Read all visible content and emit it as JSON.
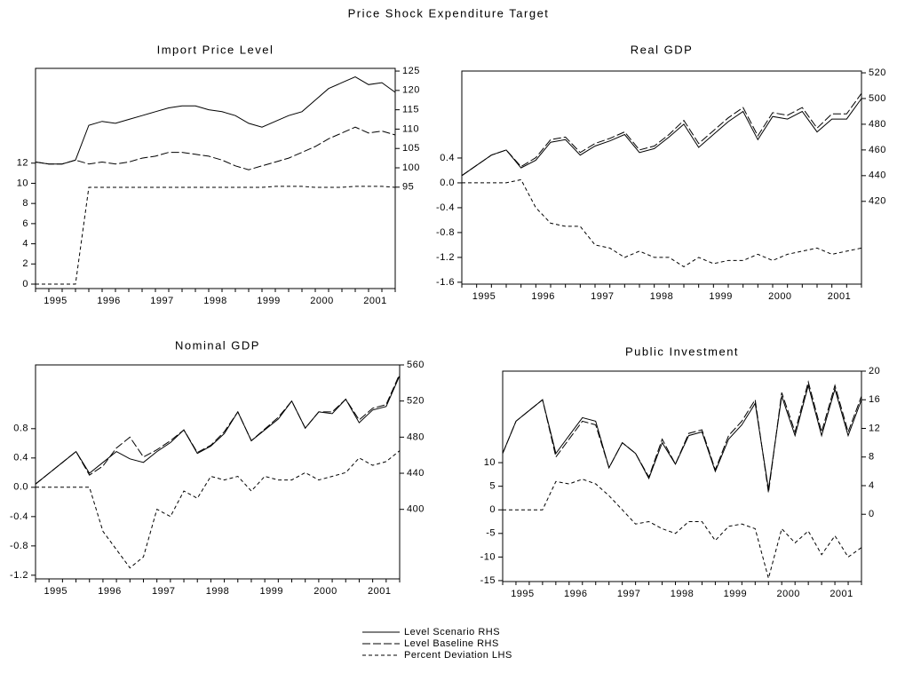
{
  "title": "Price Shock Expenditure Target",
  "legend": [
    {
      "label": "Level Scenario  RHS",
      "style": "solid"
    },
    {
      "label": "Level Baseline RHS",
      "style": "long-dash"
    },
    {
      "label": "Percent Deviation  LHS",
      "style": "short-dash"
    }
  ],
  "chart_data": [
    {
      "type": "line",
      "title": "Import Price Level",
      "categories": [
        null,
        null,
        "1995",
        null,
        null,
        null,
        "1996",
        null,
        null,
        null,
        "1997",
        null,
        null,
        null,
        "1998",
        null,
        null,
        null,
        "1999",
        null,
        null,
        null,
        "2000",
        null,
        null,
        null,
        "2001",
        null
      ],
      "ylim": [
        -0.44,
        21.4
      ],
      "yticks": [
        0,
        2,
        4,
        6,
        8,
        10,
        12
      ],
      "y2lim": [
        68.8,
        125.7
      ],
      "y2ticks": [
        95,
        100,
        105,
        110,
        115,
        120,
        125
      ],
      "series": [
        {
          "style": "solid",
          "axis": "y2",
          "color": "#000000",
          "values": [
            101.5,
            101,
            101,
            102,
            111,
            112,
            111.5,
            112.5,
            113.5,
            114.5,
            115.5,
            116,
            116,
            115,
            114.5,
            113.5,
            111.5,
            110.5,
            112,
            113.5,
            114.5,
            117.5,
            120.5,
            122,
            123.5,
            121.5,
            122,
            119.5
          ]
        },
        {
          "style": "long-dash",
          "axis": "y2",
          "color": "#000000",
          "values": [
            101.5,
            101,
            101,
            102,
            101,
            101.5,
            101,
            101.5,
            102.5,
            103,
            104,
            104,
            103.5,
            103,
            102,
            100.5,
            99.5,
            100.5,
            101.5,
            102.5,
            104,
            105.5,
            107.5,
            109,
            110.5,
            109,
            109.5,
            108.5
          ]
        },
        {
          "style": "short-dash",
          "axis": "y",
          "color": "#000000",
          "values": [
            0,
            0,
            0,
            0,
            9.6,
            9.6,
            9.6,
            9.6,
            9.6,
            9.6,
            9.6,
            9.6,
            9.6,
            9.6,
            9.6,
            9.6,
            9.6,
            9.6,
            9.7,
            9.7,
            9.7,
            9.6,
            9.6,
            9.6,
            9.7,
            9.7,
            9.7,
            9.6
          ]
        }
      ]
    },
    {
      "type": "line",
      "title": "Real GDP",
      "categories": [
        null,
        null,
        "1995",
        null,
        null,
        null,
        "1996",
        null,
        null,
        null,
        "1997",
        null,
        null,
        null,
        "1998",
        null,
        null,
        null,
        "1999",
        null,
        null,
        null,
        "2000",
        null,
        null,
        null,
        "2001",
        null
      ],
      "ylim": [
        -1.63,
        1.8
      ],
      "yticks": [
        -1.6,
        -1.2,
        -0.8,
        -0.4,
        {
          "value": 0,
          "label": "0.0"
        },
        0.4
      ],
      "y2lim": [
        355.6,
        521.4
      ],
      "y2ticks": [
        420,
        440,
        460,
        480,
        500,
        520
      ],
      "series": [
        {
          "style": "solid",
          "axis": "y2",
          "color": "#000000",
          "values": [
            440,
            448,
            456,
            460,
            446,
            452,
            466,
            468,
            456,
            463,
            467,
            472,
            458,
            461,
            470,
            480,
            462,
            472,
            482,
            490,
            468,
            486,
            484,
            490,
            474,
            484,
            484,
            500
          ]
        },
        {
          "style": "long-dash",
          "axis": "y2",
          "color": "#000000",
          "values": [
            440,
            448,
            456,
            460,
            447,
            454,
            468,
            470,
            458,
            465,
            469,
            474,
            460,
            463,
            472,
            483,
            465,
            475,
            485,
            493,
            471,
            489,
            487,
            493,
            477,
            488,
            488,
            504
          ]
        },
        {
          "style": "short-dash",
          "axis": "y",
          "color": "#000000",
          "values": [
            0,
            0,
            0,
            0,
            0.05,
            -0.4,
            -0.65,
            -0.7,
            -0.7,
            -1.0,
            -1.05,
            -1.2,
            -1.1,
            -1.2,
            -1.2,
            -1.35,
            -1.2,
            -1.3,
            -1.25,
            -1.25,
            -1.15,
            -1.25,
            -1.15,
            -1.1,
            -1.05,
            -1.15,
            -1.1,
            -1.05
          ]
        }
      ]
    },
    {
      "type": "line",
      "title": "Nominal GDP",
      "categories": [
        null,
        null,
        "1995",
        null,
        null,
        null,
        "1996",
        null,
        null,
        null,
        "1997",
        null,
        null,
        null,
        "1998",
        null,
        null,
        null,
        "1999",
        null,
        null,
        null,
        "2000",
        null,
        null,
        null,
        "2001",
        null
      ],
      "ylim": [
        -1.25,
        1.67
      ],
      "yticks": [
        -1.2,
        -0.8,
        -0.4,
        {
          "value": 0,
          "label": "0.0"
        },
        0.4,
        0.8
      ],
      "y2lim": [
        323,
        560
      ],
      "y2ticks": [
        400,
        440,
        480,
        520,
        560
      ],
      "series": [
        {
          "style": "solid",
          "axis": "y2",
          "color": "#000000",
          "values": [
            428,
            440,
            452,
            464,
            440,
            452,
            464,
            456,
            452,
            464,
            474,
            488,
            462,
            470,
            484,
            508,
            476,
            488,
            500,
            520,
            490,
            508,
            506,
            522,
            496,
            510,
            514,
            548
          ]
        },
        {
          "style": "long-dash",
          "axis": "y2",
          "color": "#000000",
          "values": [
            428,
            440,
            452,
            464,
            438,
            448,
            468,
            480,
            458,
            466,
            476,
            488,
            463,
            471,
            486,
            508,
            476,
            489,
            502,
            520,
            490,
            508,
            508,
            522,
            499,
            512,
            516,
            550
          ]
        },
        {
          "style": "short-dash",
          "axis": "y",
          "color": "#000000",
          "values": [
            0,
            0,
            0,
            0,
            0,
            -0.6,
            -0.85,
            -1.1,
            -0.95,
            -0.3,
            -0.4,
            -0.05,
            -0.15,
            0.15,
            0.1,
            0.15,
            -0.05,
            0.15,
            0.1,
            0.1,
            0.2,
            0.1,
            0.15,
            0.2,
            0.4,
            0.3,
            0.35,
            0.5
          ]
        }
      ]
    },
    {
      "type": "line",
      "title": "Public Investment",
      "categories": [
        null,
        null,
        "1995",
        null,
        null,
        null,
        "1996",
        null,
        null,
        null,
        "1997",
        null,
        null,
        null,
        "1998",
        null,
        null,
        null,
        "1999",
        null,
        null,
        null,
        "2000",
        null,
        null,
        null,
        "2001",
        null
      ],
      "ylim": [
        -15.2,
        29.4
      ],
      "yticks": [
        -15,
        -10,
        -5,
        0,
        5,
        10
      ],
      "y2lim": [
        -9.4,
        20
      ],
      "y2ticks": [
        0,
        4,
        8,
        12,
        16,
        20
      ],
      "series": [
        {
          "style": "solid",
          "axis": "y2",
          "color": "#000000",
          "values": [
            8.5,
            13,
            14.5,
            16,
            8.5,
            11,
            13.5,
            13,
            6.5,
            10,
            8.5,
            5,
            10,
            7,
            11,
            11.5,
            6,
            10.5,
            12.5,
            15.5,
            3.5,
            16.5,
            11,
            18,
            11,
            17.5,
            11,
            16
          ]
        },
        {
          "style": "long-dash",
          "axis": "y2",
          "color": "#000000",
          "values": [
            8.5,
            13,
            14.5,
            16,
            8,
            10.5,
            13,
            12.5,
            6.5,
            10,
            8.5,
            5.2,
            10.5,
            7,
            11.3,
            11.8,
            6.2,
            11,
            13,
            16,
            3,
            17,
            11.5,
            18.5,
            11.5,
            18,
            11.5,
            16.5
          ]
        },
        {
          "style": "short-dash",
          "axis": "y",
          "color": "#000000",
          "values": [
            0,
            0,
            0,
            0,
            6,
            5.5,
            6.5,
            5.5,
            3,
            0,
            -3,
            -2.5,
            -4,
            -5,
            -2.5,
            -2.5,
            -6.5,
            -3.5,
            -3,
            -4,
            -14.5,
            -4,
            -7,
            -4.5,
            -9.5,
            -5.5,
            -10,
            -8
          ]
        }
      ]
    }
  ]
}
